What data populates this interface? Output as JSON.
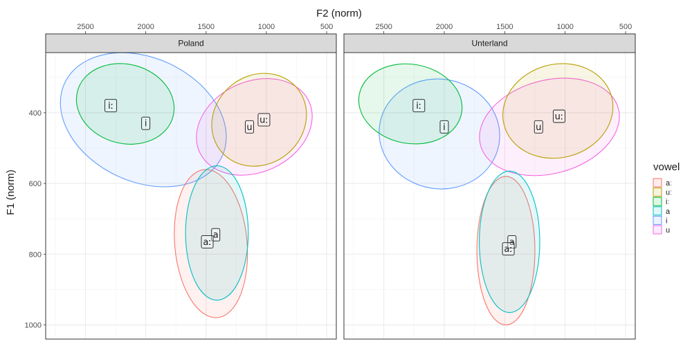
{
  "chart_data": {
    "type": "scatter",
    "x_title": "F2 (norm)",
    "y_title": "F1 (norm)",
    "x_reversed": true,
    "y_reversed": true,
    "xlim": [
      2830,
      420
    ],
    "ylim": [
      230,
      1040
    ],
    "x_ticks": [
      2500,
      2000,
      1500,
      1000,
      500
    ],
    "y_ticks": [
      400,
      600,
      800,
      1000
    ],
    "grid": true,
    "legend": {
      "title": "vowel",
      "position": "right",
      "entries": [
        {
          "label": "aː",
          "color": "#F8766D"
        },
        {
          "label": "uː",
          "color": "#B79F00"
        },
        {
          "label": "iː",
          "color": "#00BA38"
        },
        {
          "label": "a",
          "color": "#00BFC4"
        },
        {
          "label": "i",
          "color": "#619CFF"
        },
        {
          "label": "u",
          "color": "#F564E3"
        }
      ]
    },
    "panels": [
      {
        "title": "Poland",
        "ellipses": [
          {
            "vowel": "i",
            "center": [
              2020,
              420
            ],
            "semi_f2": 720,
            "semi_f1": 175,
            "tilt_deg": 25
          },
          {
            "vowel": "iː",
            "center": [
              2170,
              375
            ],
            "semi_f2": 410,
            "semi_f1": 112,
            "tilt_deg": 15
          },
          {
            "vowel": "u",
            "center": [
              1100,
              440
            ],
            "semi_f2": 500,
            "semi_f1": 128,
            "tilt_deg": -25
          },
          {
            "vowel": "uː",
            "center": [
              1060,
              420
            ],
            "semi_f2": 410,
            "semi_f1": 125,
            "tilt_deg": -40
          },
          {
            "vowel": "aː",
            "center": [
              1460,
              770
            ],
            "semi_f2": 300,
            "semi_f1": 210,
            "tilt_deg": -5
          },
          {
            "vowel": "a",
            "center": [
              1410,
              740
            ],
            "semi_f2": 260,
            "semi_f1": 190,
            "tilt_deg": 0
          }
        ],
        "labels": [
          {
            "vowel": "iː",
            "f2": 2290,
            "f1": 380
          },
          {
            "vowel": "i",
            "f2": 2000,
            "f1": 430
          },
          {
            "vowel": "uː",
            "f2": 1020,
            "f1": 420
          },
          {
            "vowel": "u",
            "f2": 1140,
            "f1": 440
          },
          {
            "vowel": "a",
            "f2": 1420,
            "f1": 745
          },
          {
            "vowel": "aː",
            "f2": 1490,
            "f1": 765
          }
        ]
      },
      {
        "title": "Unterland",
        "ellipses": [
          {
            "vowel": "i",
            "center": [
              2040,
              460
            ],
            "semi_f2": 500,
            "semi_f1": 155,
            "tilt_deg": 10
          },
          {
            "vowel": "iː",
            "center": [
              2280,
              375
            ],
            "semi_f2": 430,
            "semi_f1": 112,
            "tilt_deg": 10
          },
          {
            "vowel": "u",
            "center": [
              1130,
              440
            ],
            "semi_f2": 590,
            "semi_f1": 132,
            "tilt_deg": -15
          },
          {
            "vowel": "uː",
            "center": [
              1060,
              395
            ],
            "semi_f2": 460,
            "semi_f1": 132,
            "tilt_deg": -15
          },
          {
            "vowel": "aː",
            "center": [
              1490,
              790
            ],
            "semi_f2": 240,
            "semi_f1": 210,
            "tilt_deg": 0
          },
          {
            "vowel": "a",
            "center": [
              1460,
              765
            ],
            "semi_f2": 250,
            "semi_f1": 200,
            "tilt_deg": 0
          }
        ],
        "labels": [
          {
            "vowel": "iː",
            "f2": 2210,
            "f1": 380
          },
          {
            "vowel": "i",
            "f2": 2000,
            "f1": 440
          },
          {
            "vowel": "uː",
            "f2": 1050,
            "f1": 410
          },
          {
            "vowel": "u",
            "f2": 1220,
            "f1": 440
          },
          {
            "vowel": "a",
            "f2": 1440,
            "f1": 765
          },
          {
            "vowel": "aː",
            "f2": 1470,
            "f1": 785
          }
        ]
      }
    ]
  }
}
